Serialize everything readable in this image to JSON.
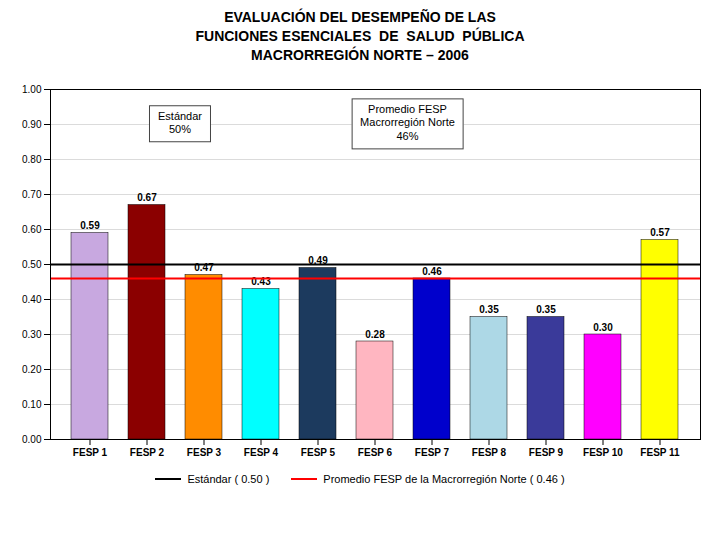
{
  "chart_data": {
    "type": "bar",
    "title": "EVALUACIÓN DEL DESEMPEÑO DE LAS\nFUNCIONES ESENCIALES  DE  SALUD  PÚBLICA\nMACRORREGIÓN NORTE – 2006",
    "categories": [
      "FESP 1",
      "FESP 2",
      "FESP 3",
      "FESP 4",
      "FESP 5",
      "FESP 6",
      "FESP 7",
      "FESP 8",
      "FESP 9",
      "FESP 10",
      "FESP 11"
    ],
    "values": [
      0.59,
      0.67,
      0.47,
      0.43,
      0.49,
      0.28,
      0.46,
      0.35,
      0.35,
      0.3,
      0.57
    ],
    "value_labels": [
      "0.59",
      "0.67",
      "0.47",
      "0.43",
      "0.49",
      "0.28",
      "0.46",
      "0.35",
      "0.35",
      "0.30",
      "0.57"
    ],
    "colors": [
      "#c8a8e0",
      "#8b0000",
      "#ff8c00",
      "#00ffff",
      "#1c3a5e",
      "#ffb6c1",
      "#0000cc",
      "#add8e6",
      "#3a3a9a",
      "#ff00ff",
      "#ffff00"
    ],
    "data_labels": true,
    "lines": [
      {
        "name": "Estándar ( 0.50 )",
        "value": 0.5,
        "color": "black"
      },
      {
        "name": "Promedio FESP de la Macrorregión Norte ( 0.46 )",
        "value": 0.46,
        "color": "red"
      }
    ],
    "annotations": [
      "Estándar\n50%",
      "Promedio FESP\nMacrorregión Norte\n46%"
    ],
    "ylim": [
      0,
      1.0
    ],
    "yticks": [
      {
        "value": 0.0,
        "label": "0.00"
      },
      {
        "value": 0.1,
        "label": "0.10"
      },
      {
        "value": 0.2,
        "label": "0.20"
      },
      {
        "value": 0.3,
        "label": "0.30"
      },
      {
        "value": 0.4,
        "label": "0.40"
      },
      {
        "value": 0.5,
        "label": "0.50"
      },
      {
        "value": 0.6,
        "label": "0.60"
      },
      {
        "value": 0.7,
        "label": "0.70"
      },
      {
        "value": 0.8,
        "label": "0.80"
      },
      {
        "value": 0.9,
        "label": "0.90"
      },
      {
        "value": 1.0,
        "label": "1.00"
      }
    ],
    "grid": true,
    "legend": "bottom"
  }
}
